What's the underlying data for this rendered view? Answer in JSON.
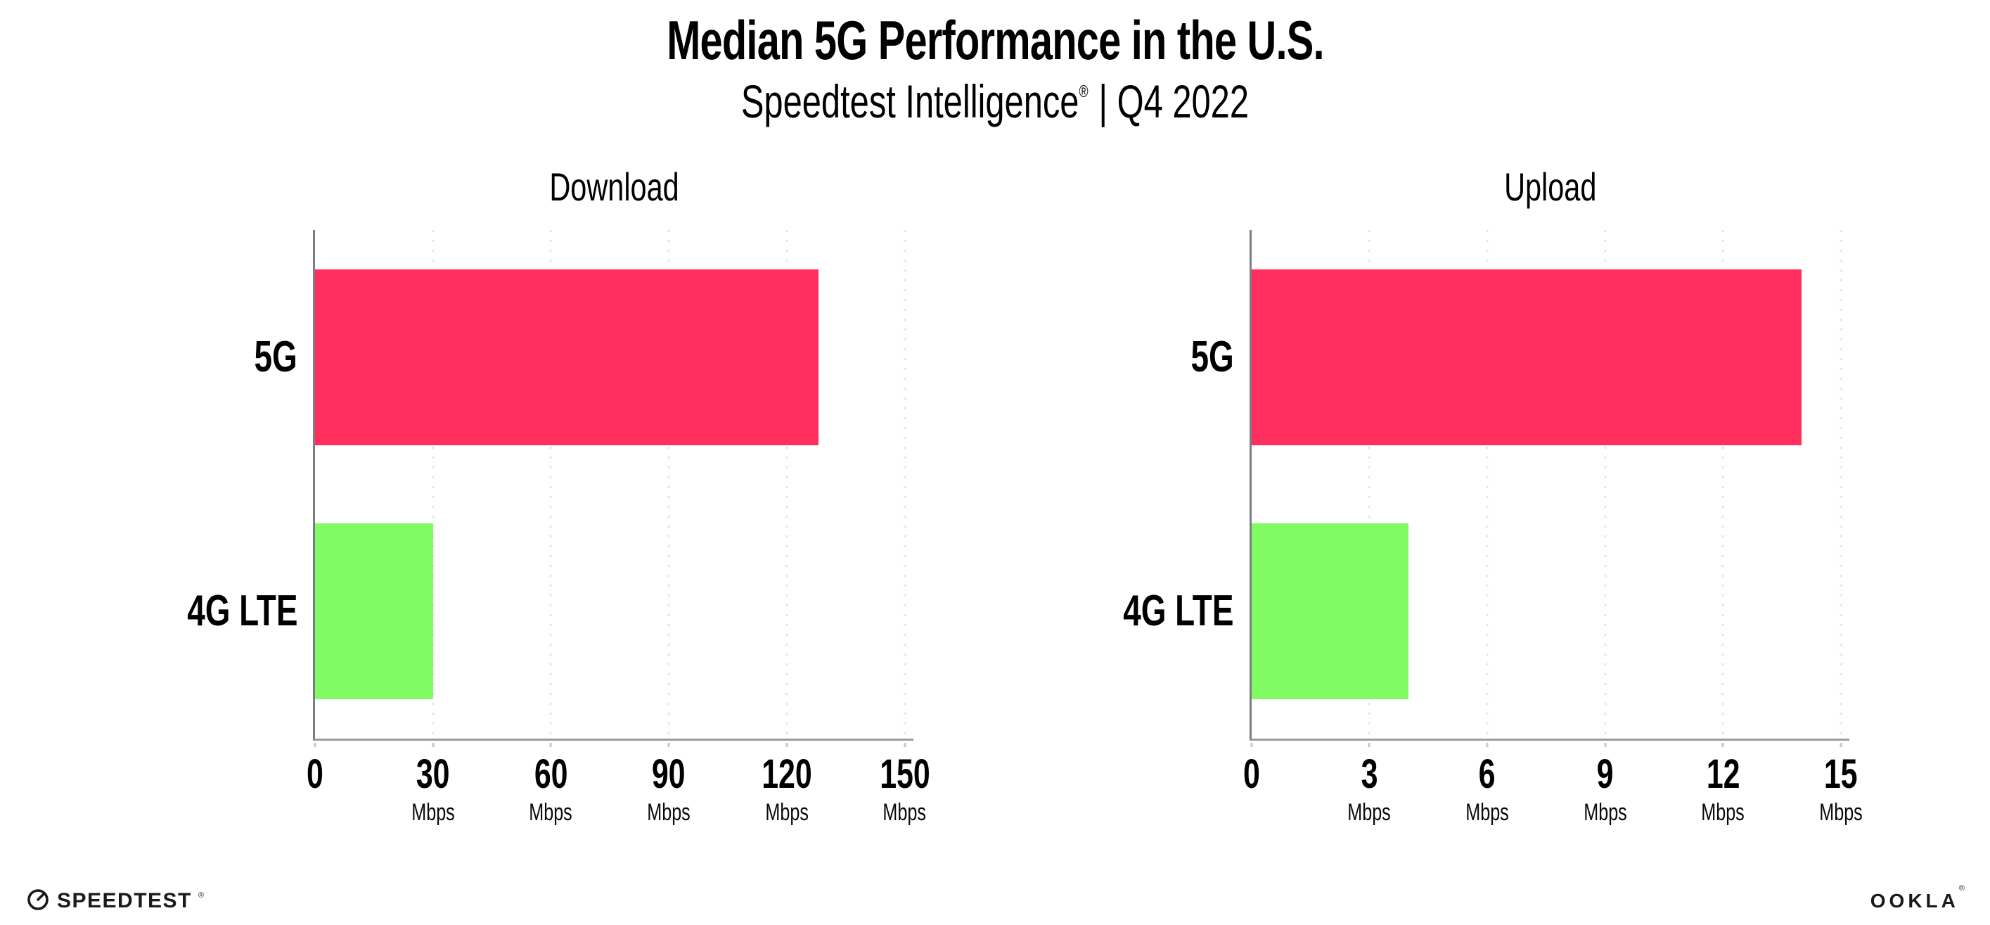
{
  "header": {
    "title": "Median 5G Performance in the U.S.",
    "subtitle_product": "Speedtest Intelligence",
    "subtitle_reg": "®",
    "subtitle_rest": "| Q4 2022"
  },
  "colors": {
    "bar_5g": "#ff2e5c",
    "bar_4g_lte": "#80fb64",
    "gridline": "#e4e4ee",
    "axis_x": "#9b9ba2",
    "axis_y": "#7c7c84",
    "tick_mark": "#c6c6d0",
    "text": "#000000"
  },
  "chart_data": [
    {
      "type": "bar",
      "orientation": "horizontal",
      "title": "Download",
      "categories": [
        "5G",
        "4G LTE"
      ],
      "values": [
        128,
        30
      ],
      "unit": "Mbps",
      "xlim": [
        0,
        150
      ],
      "xticks": [
        0,
        30,
        60,
        90,
        120,
        150
      ],
      "bar_colors": [
        "#ff2e5c",
        "#80fb64"
      ],
      "grid": "vertical-dotted",
      "legend": "none"
    },
    {
      "type": "bar",
      "orientation": "horizontal",
      "title": "Upload",
      "categories": [
        "5G",
        "4G LTE"
      ],
      "values": [
        14,
        4
      ],
      "unit": "Mbps",
      "xlim": [
        0,
        15
      ],
      "xticks": [
        0,
        3,
        6,
        9,
        12,
        15
      ],
      "bar_colors": [
        "#ff2e5c",
        "#80fb64"
      ],
      "grid": "vertical-dotted",
      "legend": "none"
    }
  ],
  "footer": {
    "speedtest_label": "SPEEDTEST",
    "speedtest_mark": "®",
    "ookla_label": "OOKLA",
    "ookla_mark": "®"
  }
}
